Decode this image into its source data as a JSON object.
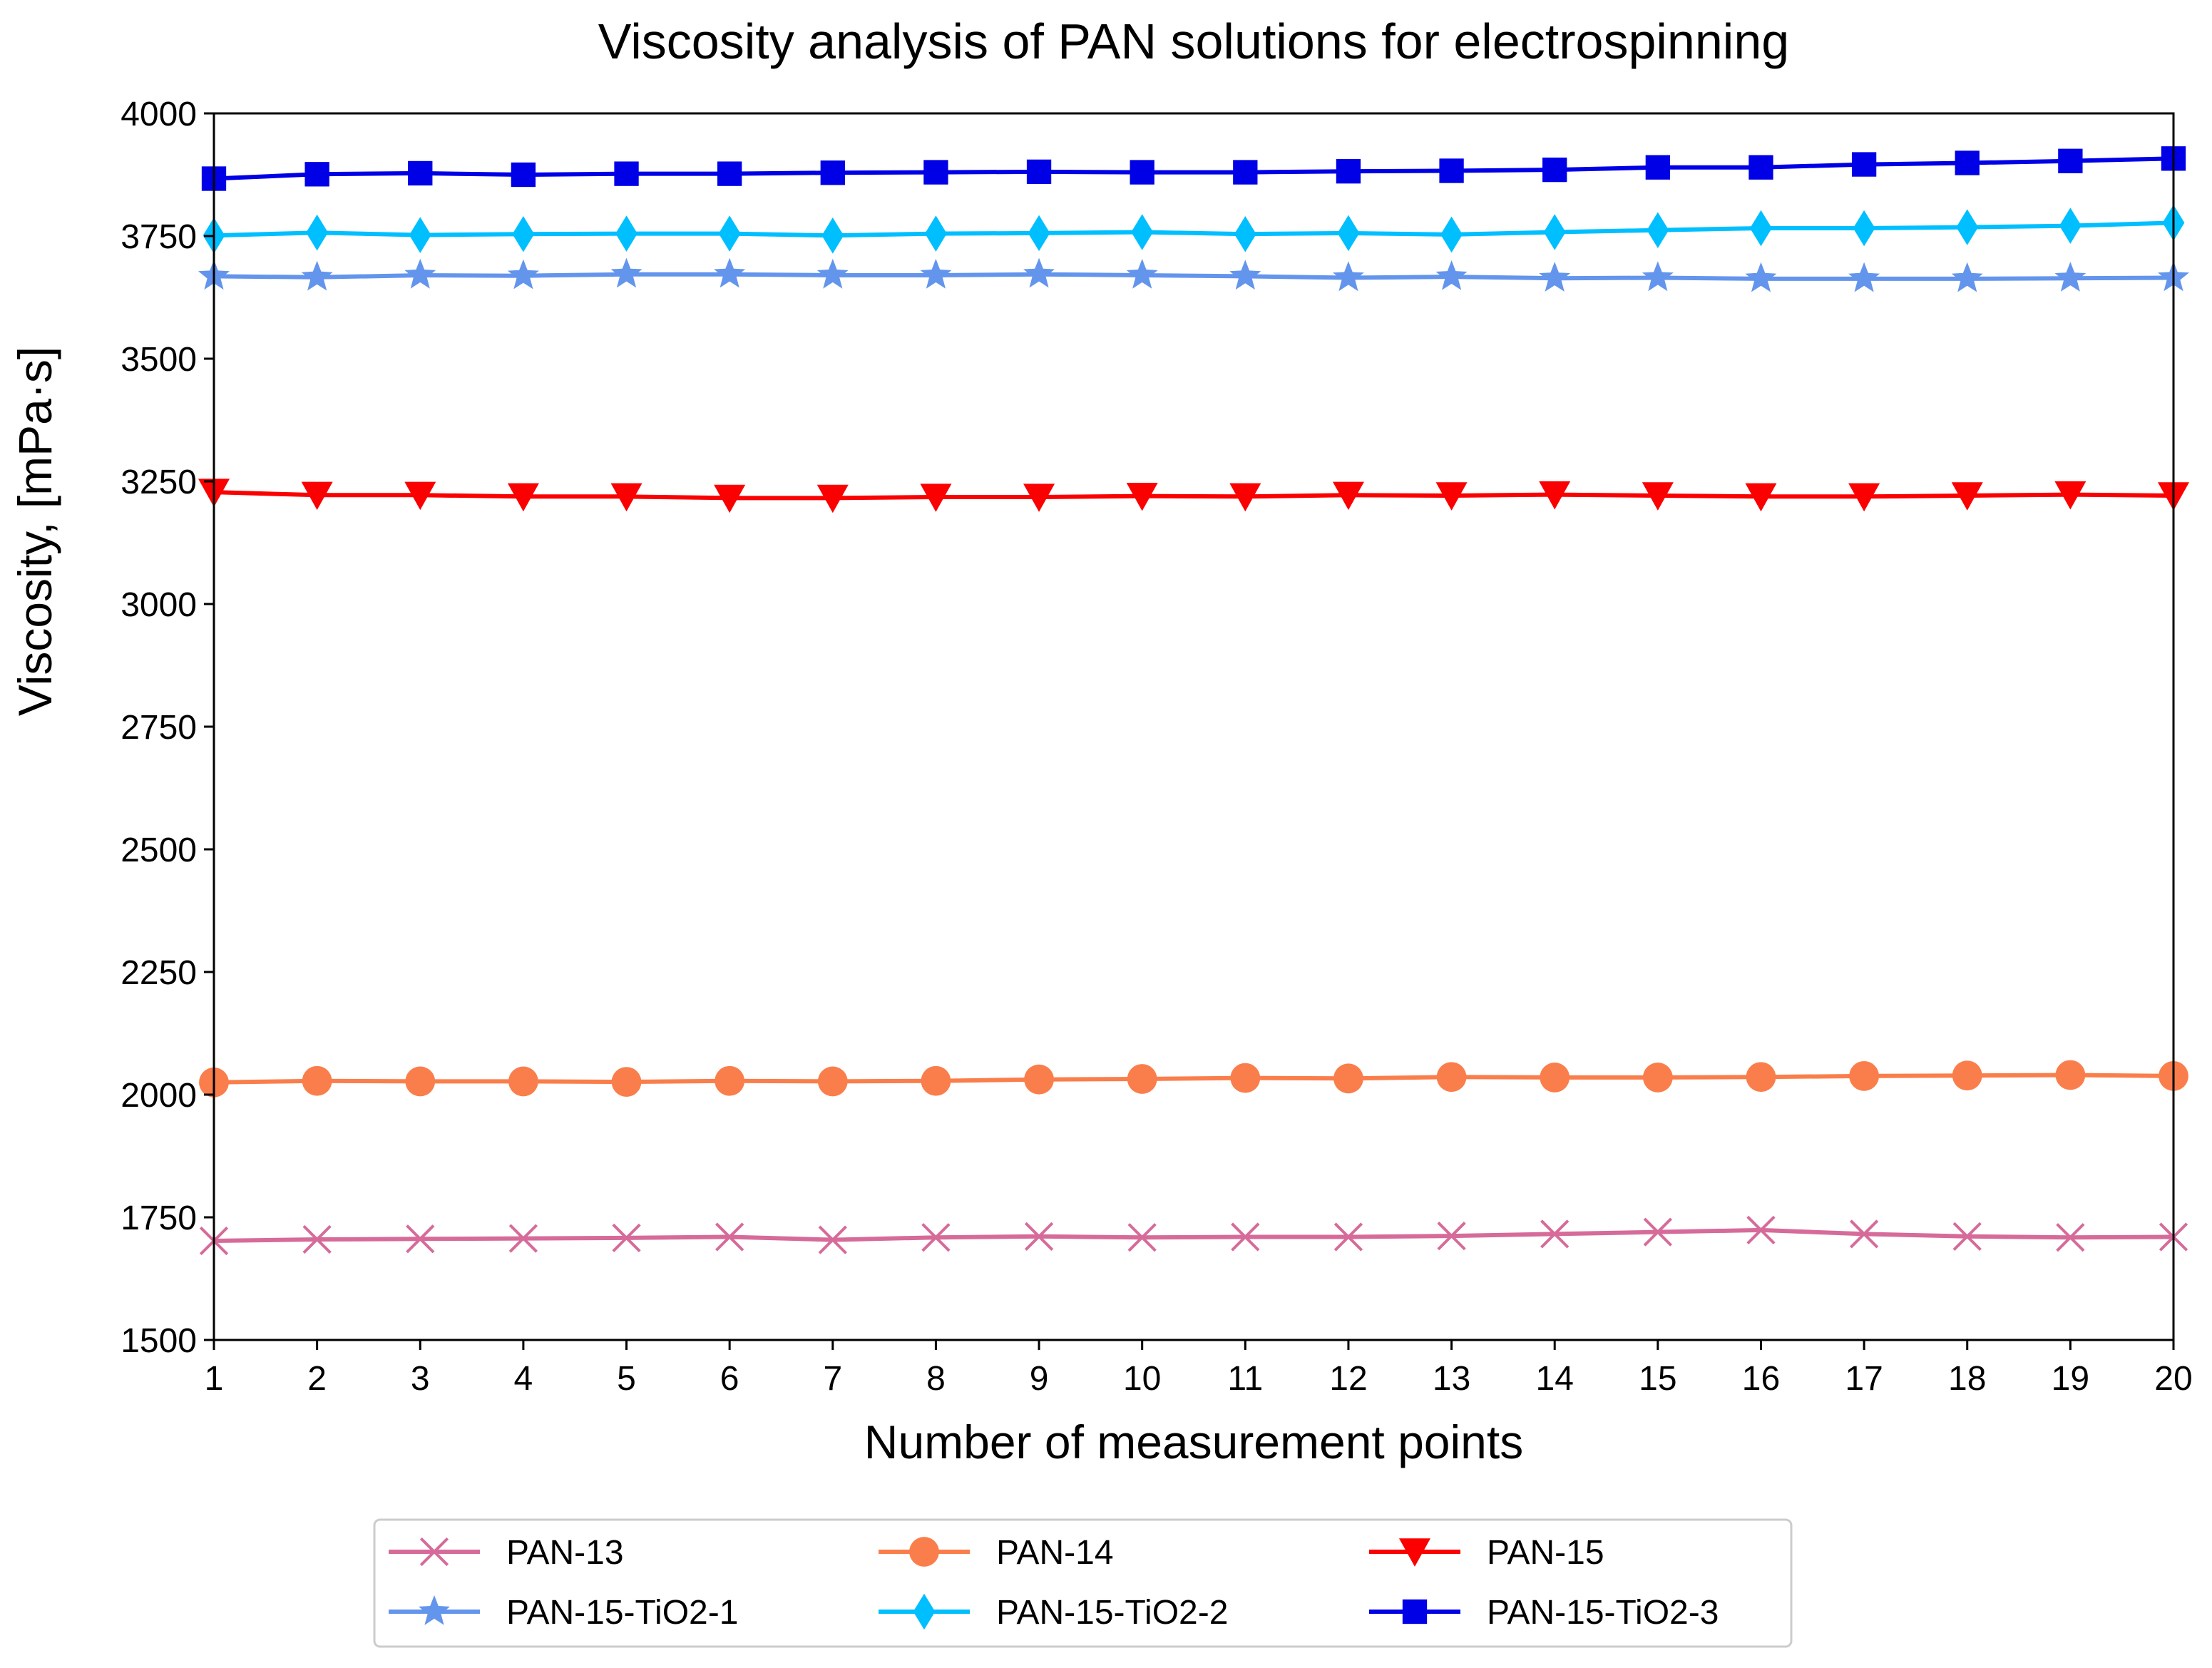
{
  "chart_data": {
    "type": "line",
    "title": "Viscosity analysis of PAN solutions for electrospinning",
    "xlabel": "Number of measurement points",
    "ylabel": "Viscosity, [mPa·s]",
    "xlim": [
      1,
      20
    ],
    "ylim": [
      1500,
      4000
    ],
    "x": [
      1,
      2,
      3,
      4,
      5,
      6,
      7,
      8,
      9,
      10,
      11,
      12,
      13,
      14,
      15,
      16,
      17,
      18,
      19,
      20
    ],
    "xticks": [
      "1",
      "2",
      "3",
      "4",
      "5",
      "6",
      "7",
      "8",
      "9",
      "10",
      "11",
      "12",
      "13",
      "14",
      "15",
      "16",
      "17",
      "18",
      "19",
      "20"
    ],
    "yticks": [
      "1500",
      "1750",
      "2000",
      "2250",
      "2500",
      "2750",
      "3000",
      "3250",
      "3500",
      "3750",
      "4000"
    ],
    "grid": false,
    "legend_position": "bottom-center",
    "series": [
      {
        "name": "PAN-13",
        "color": "#d66b9a",
        "marker": "x",
        "values": [
          1702,
          1705,
          1706,
          1707,
          1708,
          1710,
          1704,
          1709,
          1711,
          1709,
          1710,
          1710,
          1712,
          1716,
          1720,
          1724,
          1716,
          1711,
          1709,
          1710
        ]
      },
      {
        "name": "PAN-14",
        "color": "#fa7e4b",
        "marker": "circle",
        "values": [
          2025,
          2028,
          2027,
          2027,
          2026,
          2028,
          2027,
          2028,
          2031,
          2032,
          2034,
          2033,
          2036,
          2035,
          2035,
          2036,
          2038,
          2039,
          2040,
          2038
        ]
      },
      {
        "name": "PAN-15",
        "color": "#fa0000",
        "marker": "triangle-down",
        "values": [
          3228,
          3222,
          3222,
          3219,
          3219,
          3216,
          3216,
          3218,
          3218,
          3220,
          3219,
          3222,
          3221,
          3223,
          3221,
          3219,
          3219,
          3221,
          3223,
          3221
        ]
      },
      {
        "name": "PAN-15-TiO2-1",
        "color": "#6495ed",
        "marker": "star",
        "values": [
          3668,
          3666,
          3670,
          3669,
          3672,
          3672,
          3670,
          3670,
          3672,
          3670,
          3668,
          3665,
          3667,
          3664,
          3665,
          3663,
          3663,
          3663,
          3664,
          3665
        ]
      },
      {
        "name": "PAN-15-TiO2-2",
        "color": "#00bfff",
        "marker": "diamond",
        "values": [
          3751,
          3757,
          3752,
          3754,
          3755,
          3755,
          3751,
          3755,
          3756,
          3758,
          3754,
          3756,
          3753,
          3758,
          3762,
          3766,
          3766,
          3768,
          3771,
          3777
        ]
      },
      {
        "name": "PAN-15-TiO2-3",
        "color": "#0000e6",
        "marker": "square",
        "values": [
          3867,
          3876,
          3878,
          3875,
          3877,
          3877,
          3879,
          3880,
          3881,
          3880,
          3880,
          3882,
          3883,
          3885,
          3890,
          3890,
          3896,
          3899,
          3903,
          3908
        ]
      }
    ]
  }
}
